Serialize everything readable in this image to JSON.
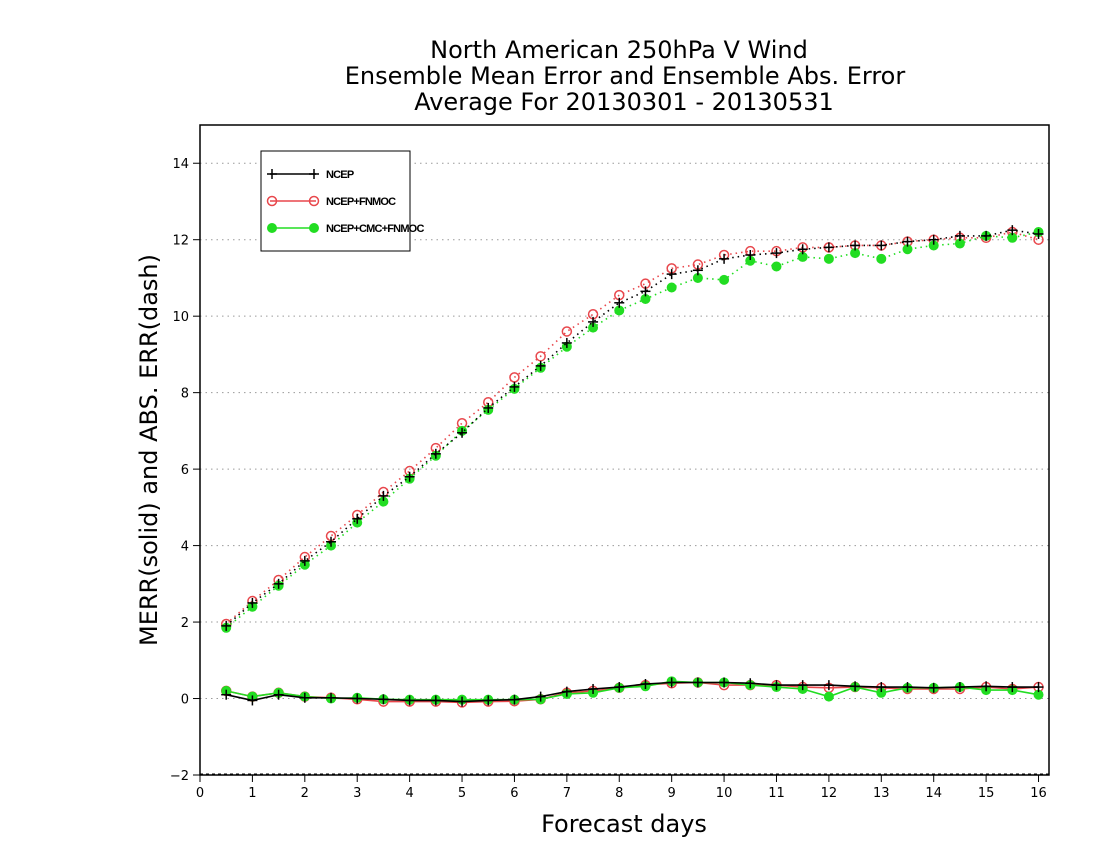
{
  "chart_data": {
    "type": "line",
    "title": [
      "North American 250hPa V Wind",
      "Ensemble Mean Error and Ensemble Abs. Error",
      "Average For 20130301 - 20130531"
    ],
    "xlabel": "Forecast days",
    "ylabel": "MERR(solid) and ABS. ERR(dash)",
    "xlim": [
      0,
      16.2
    ],
    "ylim": [
      -2,
      15
    ],
    "xticks": [
      0,
      1,
      2,
      3,
      4,
      5,
      6,
      7,
      8,
      9,
      10,
      11,
      12,
      13,
      14,
      15,
      16
    ],
    "yticks": [
      -2,
      0,
      2,
      4,
      6,
      8,
      10,
      12,
      14
    ],
    "y_gridlines": true,
    "legend_position": "top-left",
    "x": [
      0.5,
      1.0,
      1.5,
      2.0,
      2.5,
      3.0,
      3.5,
      4.0,
      4.5,
      5.0,
      5.5,
      6.0,
      6.5,
      7.0,
      7.5,
      8.0,
      8.5,
      9.0,
      9.5,
      10.0,
      10.5,
      11.0,
      11.5,
      12.0,
      12.5,
      13.0,
      13.5,
      14.0,
      14.5,
      15.0,
      15.5,
      16.0
    ],
    "series": [
      {
        "name": "NCEP",
        "color": "#000000",
        "marker": "plus",
        "merr": [
          0.1,
          -0.05,
          0.1,
          0.02,
          0.02,
          0.0,
          -0.02,
          -0.05,
          -0.05,
          -0.08,
          -0.05,
          -0.03,
          0.05,
          0.18,
          0.25,
          0.3,
          0.38,
          0.42,
          0.42,
          0.42,
          0.4,
          0.35,
          0.35,
          0.35,
          0.32,
          0.3,
          0.3,
          0.28,
          0.3,
          0.32,
          0.3,
          0.3
        ],
        "abs_err": [
          1.9,
          2.5,
          3.0,
          3.6,
          4.1,
          4.7,
          5.3,
          5.8,
          6.4,
          6.95,
          7.6,
          8.15,
          8.7,
          9.3,
          9.85,
          10.35,
          10.65,
          11.1,
          11.2,
          11.5,
          11.6,
          11.65,
          11.75,
          11.8,
          11.85,
          11.85,
          11.95,
          12.0,
          12.1,
          12.1,
          12.25,
          12.15
        ]
      },
      {
        "name": "NCEP+FNMOC",
        "color": "#e8474c",
        "marker": "open-circle",
        "merr": [
          0.2,
          0.05,
          0.15,
          0.05,
          0.02,
          -0.02,
          -0.08,
          -0.08,
          -0.08,
          -0.1,
          -0.08,
          -0.07,
          -0.02,
          0.15,
          0.2,
          0.28,
          0.35,
          0.4,
          0.42,
          0.35,
          0.35,
          0.35,
          0.3,
          0.28,
          0.3,
          0.28,
          0.25,
          0.25,
          0.25,
          0.3,
          0.25,
          0.3
        ],
        "abs_err": [
          1.95,
          2.55,
          3.1,
          3.7,
          4.25,
          4.8,
          5.4,
          5.95,
          6.55,
          7.2,
          7.75,
          8.4,
          8.95,
          9.6,
          10.05,
          10.55,
          10.85,
          11.25,
          11.35,
          11.6,
          11.7,
          11.7,
          11.8,
          11.8,
          11.85,
          11.85,
          11.95,
          12.0,
          12.05,
          12.05,
          12.2,
          12.0
        ]
      },
      {
        "name": "NCEP+CMC+FNMOC",
        "color": "#22dd22",
        "marker": "filled-circle",
        "merr": [
          0.2,
          0.05,
          0.15,
          0.05,
          0.0,
          0.02,
          -0.02,
          -0.03,
          -0.03,
          -0.03,
          -0.03,
          -0.03,
          -0.02,
          0.12,
          0.15,
          0.28,
          0.32,
          0.45,
          0.42,
          0.42,
          0.35,
          0.3,
          0.25,
          0.05,
          0.3,
          0.15,
          0.28,
          0.28,
          0.3,
          0.22,
          0.22,
          0.1
        ],
        "abs_err": [
          1.85,
          2.4,
          2.95,
          3.5,
          4.0,
          4.6,
          5.15,
          5.75,
          6.35,
          7.0,
          7.55,
          8.1,
          8.65,
          9.2,
          9.7,
          10.15,
          10.45,
          10.75,
          11.0,
          10.95,
          11.45,
          11.3,
          11.55,
          11.5,
          11.65,
          11.5,
          11.75,
          11.85,
          11.9,
          12.1,
          12.05,
          12.2
        ]
      }
    ]
  }
}
